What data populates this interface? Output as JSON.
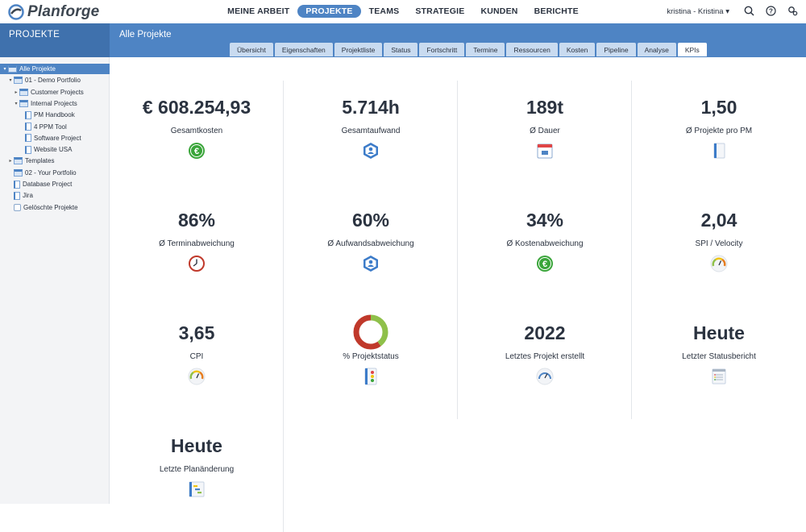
{
  "app": {
    "brand": "Planforge"
  },
  "nav": {
    "items": [
      {
        "label": "MEINE ARBEIT",
        "active": false
      },
      {
        "label": "PROJEKTE",
        "active": true
      },
      {
        "label": "TEAMS",
        "active": false
      },
      {
        "label": "STRATEGIE",
        "active": false
      },
      {
        "label": "KUNDEN",
        "active": false
      },
      {
        "label": "BERICHTE",
        "active": false
      }
    ],
    "user": "kristina - Kristina ▾",
    "icons": [
      "search-icon",
      "help-icon",
      "settings-icon"
    ]
  },
  "band": {
    "section": "PROJEKTE",
    "title": "Alle Projekte"
  },
  "tabs": [
    {
      "label": "Übersicht",
      "active": false
    },
    {
      "label": "Eigenschaften",
      "active": false
    },
    {
      "label": "Projektliste",
      "active": false
    },
    {
      "label": "Status",
      "active": false
    },
    {
      "label": "Fortschritt",
      "active": false
    },
    {
      "label": "Termine",
      "active": false
    },
    {
      "label": "Ressourcen",
      "active": false
    },
    {
      "label": "Kosten",
      "active": false
    },
    {
      "label": "Pipeline",
      "active": false
    },
    {
      "label": "Analyse",
      "active": false
    },
    {
      "label": "KPIs",
      "active": true
    }
  ],
  "tree": [
    {
      "label": "Alle Projekte",
      "level": 0,
      "expander": "▾",
      "icon": "portfolio",
      "selected": true
    },
    {
      "label": "01 - Demo Portfolio",
      "level": 1,
      "expander": "▾",
      "icon": "portfolio",
      "selected": false
    },
    {
      "label": "Customer Projects",
      "level": 2,
      "expander": "▸",
      "icon": "portfolio",
      "selected": false
    },
    {
      "label": "Internal Projects",
      "level": 2,
      "expander": "▾",
      "icon": "portfolio",
      "selected": false
    },
    {
      "label": "PM Handbook",
      "level": 3,
      "expander": "",
      "icon": "doc",
      "selected": false
    },
    {
      "label": "4 PPM Tool",
      "level": 3,
      "expander": "",
      "icon": "doc",
      "selected": false
    },
    {
      "label": "Software Project",
      "level": 3,
      "expander": "",
      "icon": "doc",
      "selected": false
    },
    {
      "label": "Website USA",
      "level": 3,
      "expander": "",
      "icon": "doc",
      "selected": false
    },
    {
      "label": "Templates",
      "level": 1,
      "expander": "▸",
      "icon": "portfolio",
      "selected": false
    },
    {
      "label": "02 - Your Portfolio",
      "level": 1,
      "expander": "",
      "icon": "portfolio",
      "selected": false
    },
    {
      "label": "Database Project",
      "level": 1,
      "expander": "",
      "icon": "doc",
      "selected": false
    },
    {
      "label": "Jira",
      "level": 1,
      "expander": "",
      "icon": "doc",
      "selected": false
    },
    {
      "label": "Gelöschte Projekte",
      "level": 1,
      "expander": "",
      "icon": "trash",
      "selected": false
    }
  ],
  "kpis": [
    {
      "value": "€ 608.254,93",
      "label": "Gesamtkosten",
      "icon": "euro-coin-green-icon"
    },
    {
      "value": "5.714h",
      "label": "Gesamtaufwand",
      "icon": "person-hexagon-icon"
    },
    {
      "value": "189t",
      "label": "Ø Dauer",
      "icon": "calendar-icon"
    },
    {
      "value": "1,50",
      "label": "Ø Projekte pro PM",
      "icon": "document-icon"
    },
    {
      "value": "86%",
      "label": "Ø Terminabweichung",
      "icon": "alarm-clock-icon"
    },
    {
      "value": "60%",
      "label": "Ø Aufwandsabweichung",
      "icon": "person-hexagon-icon"
    },
    {
      "value": "34%",
      "label": "Ø Kostenabweichung",
      "icon": "euro-coin-green-icon"
    },
    {
      "value": "2,04",
      "label": "SPI / Velocity",
      "icon": "gauge-icon"
    },
    {
      "value": "3,65",
      "label": "CPI",
      "icon": "gauge-icon"
    },
    {
      "value": "",
      "label": "% Projektstatus",
      "icon": "traffic-light-icon",
      "donut": {
        "green": 0.4,
        "red": 0.6,
        "green_color": "#8fc04a",
        "red_color": "#c0392b"
      }
    },
    {
      "value": "2022",
      "label": "Letztes Projekt erstellt",
      "icon": "speedometer-icon"
    },
    {
      "value": "Heute",
      "label": "Letzter Statusbericht",
      "icon": "report-list-icon"
    },
    {
      "value": "Heute",
      "label": "Letzte Planänderung",
      "icon": "gantt-icon"
    }
  ],
  "colors": {
    "accent": "#4e84c4",
    "accent_dark": "#3f71ad",
    "tab_bg": "#c9dbf0"
  }
}
